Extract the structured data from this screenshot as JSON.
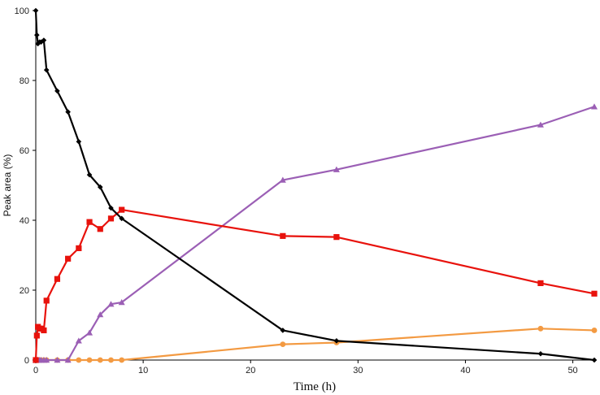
{
  "chart_data": {
    "type": "line",
    "title": "",
    "xlabel": "Time (h)",
    "ylabel": "Peak area (%)",
    "xlim": [
      0,
      52
    ],
    "ylim": [
      0,
      100
    ],
    "xticks": [
      0,
      10,
      20,
      30,
      40,
      50
    ],
    "yticks": [
      0,
      20,
      40,
      60,
      80,
      100
    ],
    "x_tick_labels": [
      "0",
      "10",
      "20",
      "30",
      "40",
      "50"
    ],
    "y_tick_labels": [
      "0",
      "20",
      "40",
      "60",
      "80",
      "100"
    ],
    "grid": false,
    "legend": "none",
    "series": [
      {
        "name": "black-diamond",
        "color": "#000000",
        "marker": "diamond",
        "x": [
          0,
          0.1,
          0.2,
          0.35,
          0.5,
          0.75,
          1,
          2,
          3,
          4,
          5,
          6,
          7,
          8,
          23,
          28,
          47,
          52
        ],
        "y": [
          100,
          93,
          90.5,
          91,
          91,
          91.5,
          83,
          77,
          71,
          62.5,
          53,
          49.5,
          43.5,
          40.5,
          8.5,
          5.5,
          1.8,
          0
        ]
      },
      {
        "name": "red-square",
        "color": "#e8120c",
        "marker": "square",
        "x": [
          0,
          0.1,
          0.2,
          0.35,
          0.5,
          0.75,
          1,
          2,
          3,
          4,
          5,
          6,
          7,
          8,
          23,
          28,
          47,
          52
        ],
        "y": [
          0,
          7,
          9.5,
          9,
          9,
          8.5,
          17,
          23.2,
          29,
          32,
          39.5,
          37.5,
          40.5,
          43,
          35.5,
          35.2,
          22,
          19
        ]
      },
      {
        "name": "purple-triangle",
        "color": "#9b5fb5",
        "marker": "triangle",
        "x": [
          0,
          0.1,
          0.2,
          0.35,
          0.5,
          0.75,
          1,
          2,
          3,
          4,
          5,
          6,
          7,
          8,
          23,
          28,
          47,
          52
        ],
        "y": [
          0,
          0,
          0,
          0,
          0,
          0,
          0,
          0,
          0,
          5.5,
          7.8,
          13,
          16,
          16.5,
          51.5,
          54.5,
          67.3,
          72.5
        ]
      },
      {
        "name": "orange-circle",
        "color": "#f39a42",
        "marker": "circle",
        "x": [
          0,
          0.1,
          0.2,
          0.35,
          0.5,
          0.75,
          1,
          2,
          3,
          4,
          5,
          6,
          7,
          8,
          23,
          28,
          47,
          52
        ],
        "y": [
          0,
          0,
          0,
          0,
          0,
          0,
          0,
          0,
          0,
          0,
          0,
          0,
          0,
          0,
          4.5,
          5,
          9,
          8.5
        ]
      }
    ]
  }
}
